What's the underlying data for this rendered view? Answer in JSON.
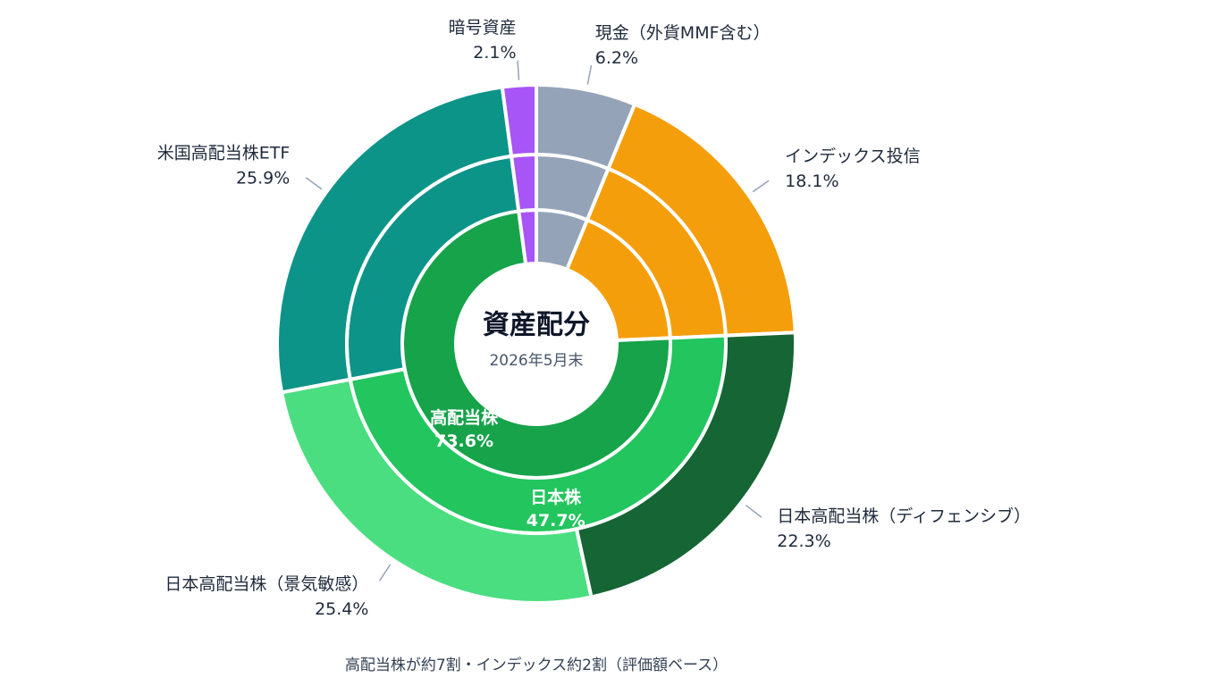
{
  "chart_data": {
    "type": "sunburst",
    "title": "資産配分",
    "subtitle": "2026年5月末",
    "caption": "高配当株が約7割・インデックス約2割（評価額ベース）",
    "nodes": [
      {
        "name": "現金（外貨MMF含む）",
        "value": 6.2,
        "value_label": "6.2%",
        "color": "#94a3b8"
      },
      {
        "name": "インデックス投信",
        "value": 18.1,
        "value_label": "18.1%",
        "color": "#f59e0b"
      },
      {
        "name": "高配当株",
        "value": 73.6,
        "value_label": "73.6%",
        "color": "#16a34a",
        "children": [
          {
            "name": "日本株",
            "value": 47.7,
            "value_label": "47.7%",
            "color": "#22c55e",
            "children": [
              {
                "name": "日本高配当株（ディフェンシブ）",
                "value": 22.3,
                "value_label": "22.3%",
                "color": "#166534"
              },
              {
                "name": "日本高配当株（景気敏感）",
                "value": 25.4,
                "value_label": "25.4%",
                "color": "#4ade80"
              }
            ]
          },
          {
            "name": "米国高配当株ETF",
            "value": 25.9,
            "value_label": "25.9%",
            "color": "#0d9488"
          }
        ]
      },
      {
        "name": "暗号資産",
        "value": 2.1,
        "value_label": "2.1%",
        "color": "#a855f7"
      }
    ]
  }
}
